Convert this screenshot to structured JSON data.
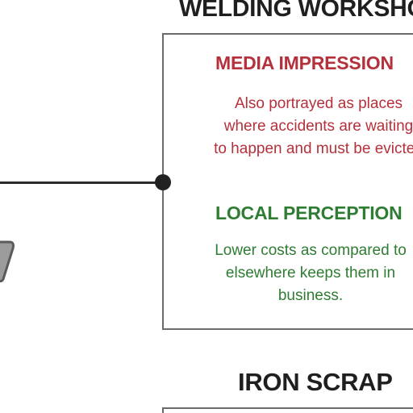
{
  "workshop": {
    "title": "WELDING WORKSHOP",
    "media": {
      "heading": "MEDIA IMPRESSION",
      "text": "Also portrayed as places\nwhere accidents are waiting\nto happen and must be evicted",
      "color": "#b5303b"
    },
    "local": {
      "heading": "LOCAL PERCEPTION",
      "text": "Lower costs as compared to\nelsewhere keeps them in\nbusiness.",
      "color": "#2e7d32"
    }
  },
  "next_section": {
    "title": "IRON SCRAP"
  },
  "icons": {
    "partial_left": "tool-icon"
  }
}
